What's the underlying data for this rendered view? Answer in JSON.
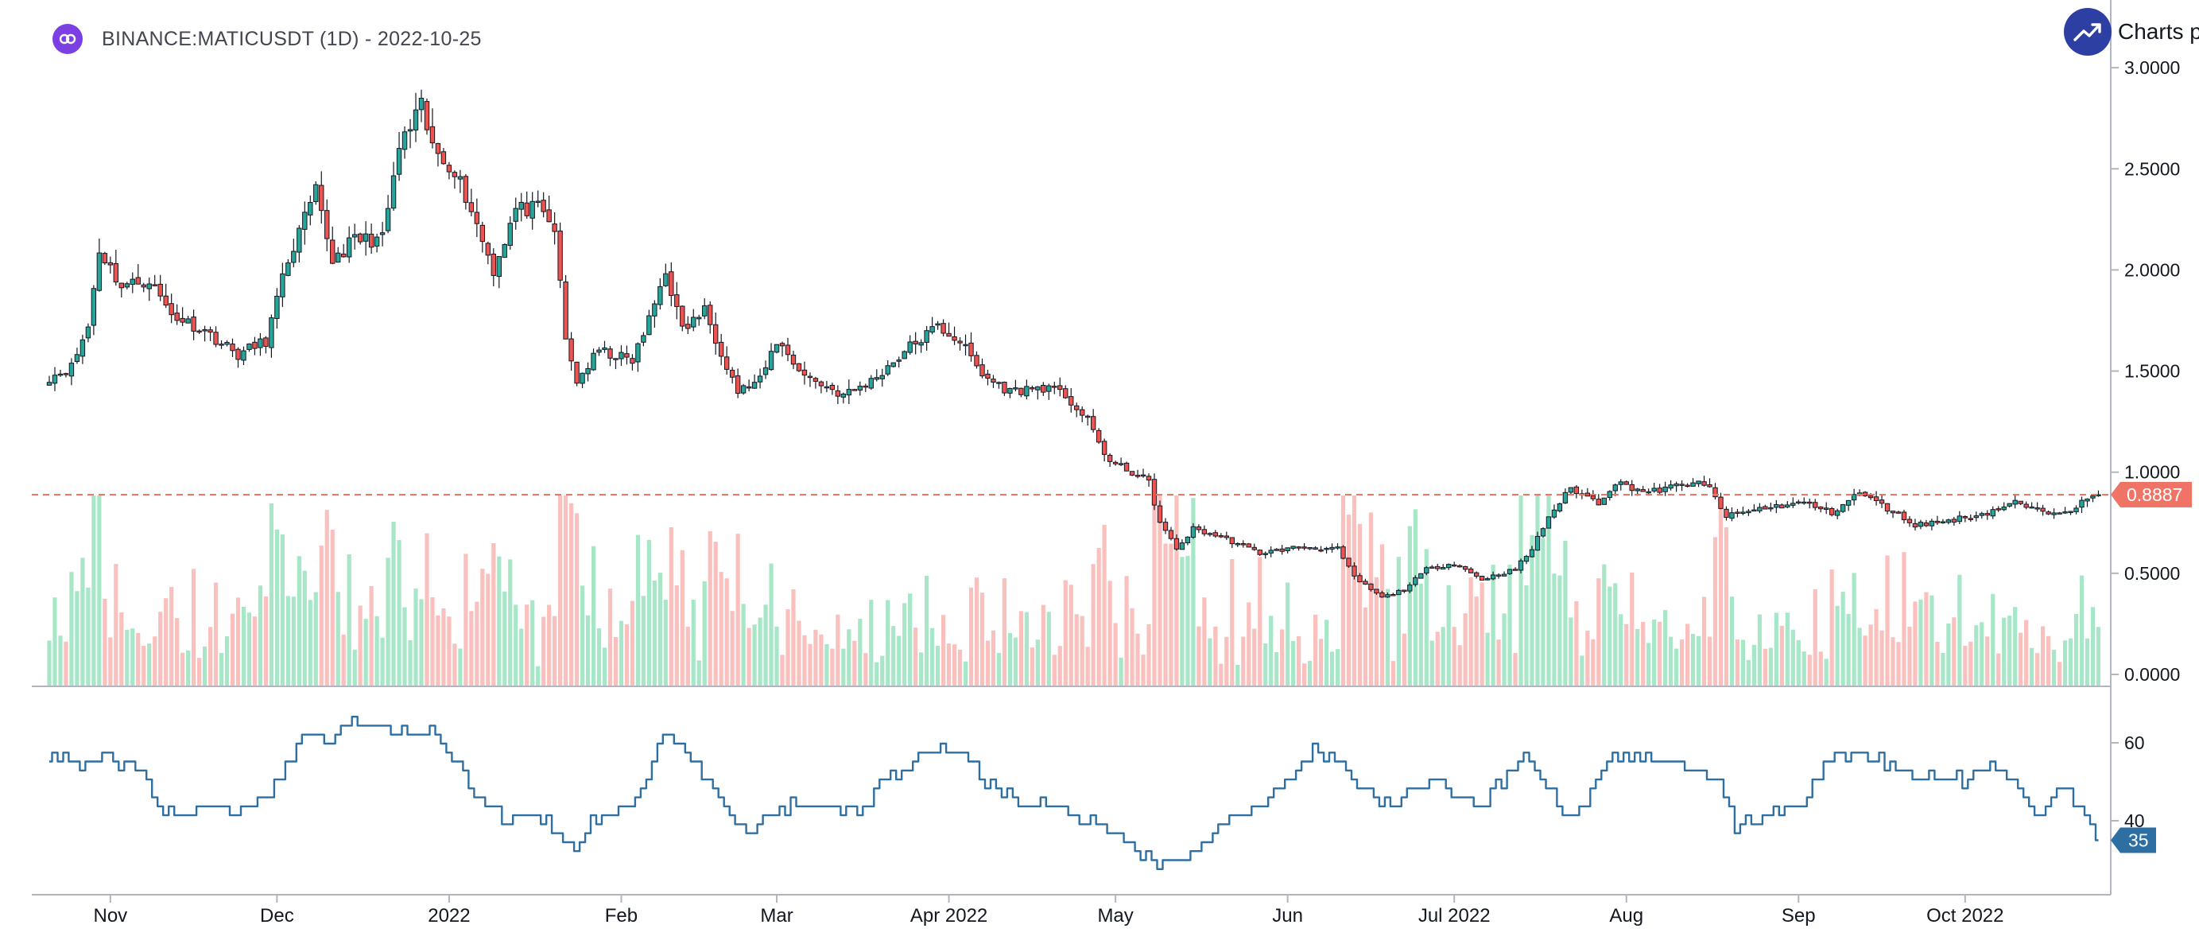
{
  "header": {
    "title": "BINANCE:MATICUSDT (1D) - 2022-10-25",
    "symbol_icon": "polygon-matic-logo"
  },
  "branding": {
    "text": "Charts p",
    "icon": "trend-up-logo-icon"
  },
  "colors": {
    "up": "#26a69a",
    "down": "#ef5350",
    "volume_up": "#a7e7c8",
    "volume_down": "#f9c0bd",
    "last_price": "#f07466",
    "rsi": "#2e6fa3",
    "logo": "#7b3fe4",
    "brand": "#2d3fa3"
  },
  "chart_data": [
    {
      "type": "candlestick",
      "interval": "1D",
      "x_range": [
        "2021-10-21",
        "2022-10-25"
      ],
      "ylim": [
        0,
        3.0
      ],
      "y_ticks": [
        "3.0000",
        "2.5000",
        "2.0000",
        "1.5000",
        "1.0000",
        "0.5000",
        "0.0000"
      ],
      "x_ticks": [
        "Nov",
        "Dec",
        "2022",
        "Feb",
        "Mar",
        "Apr 2022",
        "May",
        "Jun",
        "Jul 2022",
        "Aug",
        "Sep",
        "Oct 2022"
      ],
      "last_price": 0.8887,
      "last_price_label": "0.8887",
      "close_anchors": [
        [
          "2021-10-21",
          1.47
        ],
        [
          "2021-10-25",
          1.52
        ],
        [
          "2021-10-28",
          1.72
        ],
        [
          "2021-10-30",
          2.1
        ],
        [
          "2021-11-03",
          1.92
        ],
        [
          "2021-11-08",
          1.95
        ],
        [
          "2021-11-12",
          1.78
        ],
        [
          "2021-11-18",
          1.7
        ],
        [
          "2021-11-24",
          1.58
        ],
        [
          "2021-11-29",
          1.65
        ],
        [
          "2021-12-01",
          1.85
        ],
        [
          "2021-12-03",
          2.05
        ],
        [
          "2021-12-06",
          2.25
        ],
        [
          "2021-12-08",
          2.38
        ],
        [
          "2021-12-11",
          2.05
        ],
        [
          "2021-12-15",
          2.15
        ],
        [
          "2021-12-20",
          2.15
        ],
        [
          "2021-12-23",
          2.6
        ],
        [
          "2021-12-27",
          2.8
        ],
        [
          "2021-12-29",
          2.6
        ],
        [
          "2022-01-02",
          2.5
        ],
        [
          "2022-01-05",
          2.3
        ],
        [
          "2022-01-09",
          2.0
        ],
        [
          "2022-01-13",
          2.3
        ],
        [
          "2022-01-17",
          2.3
        ],
        [
          "2022-01-20",
          2.2
        ],
        [
          "2022-01-22",
          1.65
        ],
        [
          "2022-01-24",
          1.45
        ],
        [
          "2022-01-28",
          1.6
        ],
        [
          "2022-02-03",
          1.55
        ],
        [
          "2022-02-06",
          1.75
        ],
        [
          "2022-02-09",
          2.0
        ],
        [
          "2022-02-12",
          1.7
        ],
        [
          "2022-02-16",
          1.8
        ],
        [
          "2022-02-19",
          1.6
        ],
        [
          "2022-02-22",
          1.4
        ],
        [
          "2022-02-26",
          1.45
        ],
        [
          "2022-03-01",
          1.65
        ],
        [
          "2022-03-06",
          1.48
        ],
        [
          "2022-03-13",
          1.38
        ],
        [
          "2022-03-18",
          1.45
        ],
        [
          "2022-03-25",
          1.62
        ],
        [
          "2022-03-30",
          1.72
        ],
        [
          "2022-04-03",
          1.65
        ],
        [
          "2022-04-07",
          1.48
        ],
        [
          "2022-04-12",
          1.4
        ],
        [
          "2022-04-18",
          1.42
        ],
        [
          "2022-04-22",
          1.38
        ],
        [
          "2022-04-26",
          1.25
        ],
        [
          "2022-04-30",
          1.05
        ],
        [
          "2022-05-04",
          1.0
        ],
        [
          "2022-05-07",
          0.95
        ],
        [
          "2022-05-09",
          0.75
        ],
        [
          "2022-05-12",
          0.62
        ],
        [
          "2022-05-15",
          0.72
        ],
        [
          "2022-05-20",
          0.68
        ],
        [
          "2022-05-27",
          0.6
        ],
        [
          "2022-06-03",
          0.63
        ],
        [
          "2022-06-10",
          0.62
        ],
        [
          "2022-06-13",
          0.48
        ],
        [
          "2022-06-18",
          0.38
        ],
        [
          "2022-06-22",
          0.42
        ],
        [
          "2022-06-26",
          0.52
        ],
        [
          "2022-07-01",
          0.55
        ],
        [
          "2022-07-06",
          0.47
        ],
        [
          "2022-07-12",
          0.52
        ],
        [
          "2022-07-15",
          0.62
        ],
        [
          "2022-07-18",
          0.78
        ],
        [
          "2022-07-22",
          0.92
        ],
        [
          "2022-07-27",
          0.85
        ],
        [
          "2022-07-30",
          0.95
        ],
        [
          "2022-08-05",
          0.9
        ],
        [
          "2022-08-13",
          0.95
        ],
        [
          "2022-08-16",
          0.92
        ],
        [
          "2022-08-19",
          0.78
        ],
        [
          "2022-08-25",
          0.82
        ],
        [
          "2022-09-02",
          0.85
        ],
        [
          "2022-09-07",
          0.8
        ],
        [
          "2022-09-12",
          0.9
        ],
        [
          "2022-09-17",
          0.82
        ],
        [
          "2022-09-22",
          0.74
        ],
        [
          "2022-09-28",
          0.76
        ],
        [
          "2022-10-05",
          0.8
        ],
        [
          "2022-10-10",
          0.85
        ],
        [
          "2022-10-15",
          0.8
        ],
        [
          "2022-10-20",
          0.82
        ],
        [
          "2022-10-25",
          0.89
        ]
      ]
    },
    {
      "type": "bar",
      "name": "volume",
      "x_range": [
        "2021-10-21",
        "2022-10-25"
      ],
      "note_colors": "bar color follows candle direction"
    },
    {
      "type": "line",
      "name": "oscillator",
      "ylim": [
        27,
        68
      ],
      "y_ticks": [
        "60",
        "40"
      ],
      "last_value": 35,
      "last_value_label": "35",
      "anchors": [
        [
          "2021-10-21",
          56
        ],
        [
          "2021-10-28",
          55
        ],
        [
          "2021-11-01",
          57
        ],
        [
          "2021-11-07",
          52
        ],
        [
          "2021-11-11",
          42
        ],
        [
          "2021-11-17",
          43
        ],
        [
          "2021-11-24",
          42
        ],
        [
          "2021-11-29",
          46
        ],
        [
          "2021-12-03",
          53
        ],
        [
          "2021-12-06",
          62
        ],
        [
          "2021-12-11",
          60
        ],
        [
          "2021-12-15",
          66
        ],
        [
          "2021-12-22",
          64
        ],
        [
          "2021-12-29",
          63
        ],
        [
          "2022-01-03",
          54
        ],
        [
          "2022-01-07",
          45
        ],
        [
          "2022-01-11",
          41
        ],
        [
          "2022-01-17",
          41
        ],
        [
          "2022-01-20",
          38
        ],
        [
          "2022-01-24",
          33
        ],
        [
          "2022-01-27",
          40
        ],
        [
          "2022-02-03",
          43
        ],
        [
          "2022-02-06",
          52
        ],
        [
          "2022-02-09",
          62
        ],
        [
          "2022-02-13",
          58
        ],
        [
          "2022-02-17",
          50
        ],
        [
          "2022-02-21",
          42
        ],
        [
          "2022-02-24",
          36
        ],
        [
          "2022-02-28",
          42
        ],
        [
          "2022-03-05",
          44
        ],
        [
          "2022-03-10",
          45
        ],
        [
          "2022-03-16",
          42
        ],
        [
          "2022-03-20",
          50
        ],
        [
          "2022-03-26",
          55
        ],
        [
          "2022-03-31",
          58
        ],
        [
          "2022-04-04",
          57
        ],
        [
          "2022-04-08",
          50
        ],
        [
          "2022-04-14",
          45
        ],
        [
          "2022-04-20",
          44
        ],
        [
          "2022-04-25",
          40
        ],
        [
          "2022-04-30",
          38
        ],
        [
          "2022-05-05",
          33
        ],
        [
          "2022-05-09",
          29
        ],
        [
          "2022-05-12",
          28
        ],
        [
          "2022-05-16",
          34
        ],
        [
          "2022-05-22",
          40
        ],
        [
          "2022-05-28",
          44
        ],
        [
          "2022-06-02",
          52
        ],
        [
          "2022-06-06",
          58
        ],
        [
          "2022-06-10",
          57
        ],
        [
          "2022-06-14",
          48
        ],
        [
          "2022-06-20",
          44
        ],
        [
          "2022-06-24",
          48
        ],
        [
          "2022-06-28",
          50
        ],
        [
          "2022-07-02",
          46
        ],
        [
          "2022-07-06",
          44
        ],
        [
          "2022-07-10",
          50
        ],
        [
          "2022-07-14",
          57
        ],
        [
          "2022-07-18",
          50
        ],
        [
          "2022-07-21",
          42
        ],
        [
          "2022-07-25",
          44
        ],
        [
          "2022-07-29",
          56
        ],
        [
          "2022-08-03",
          57
        ],
        [
          "2022-08-08",
          56
        ],
        [
          "2022-08-13",
          54
        ],
        [
          "2022-08-18",
          50
        ],
        [
          "2022-08-21",
          38
        ],
        [
          "2022-08-24",
          40
        ],
        [
          "2022-08-28",
          42
        ],
        [
          "2022-09-02",
          44
        ],
        [
          "2022-09-07",
          56
        ],
        [
          "2022-09-12",
          58
        ],
        [
          "2022-09-17",
          55
        ],
        [
          "2022-09-22",
          52
        ],
        [
          "2022-09-27",
          51
        ],
        [
          "2022-10-02",
          50
        ],
        [
          "2022-10-06",
          55
        ],
        [
          "2022-10-10",
          49
        ],
        [
          "2022-10-15",
          42
        ],
        [
          "2022-10-19",
          48
        ],
        [
          "2022-10-22",
          45
        ],
        [
          "2022-10-25",
          35
        ]
      ]
    }
  ]
}
